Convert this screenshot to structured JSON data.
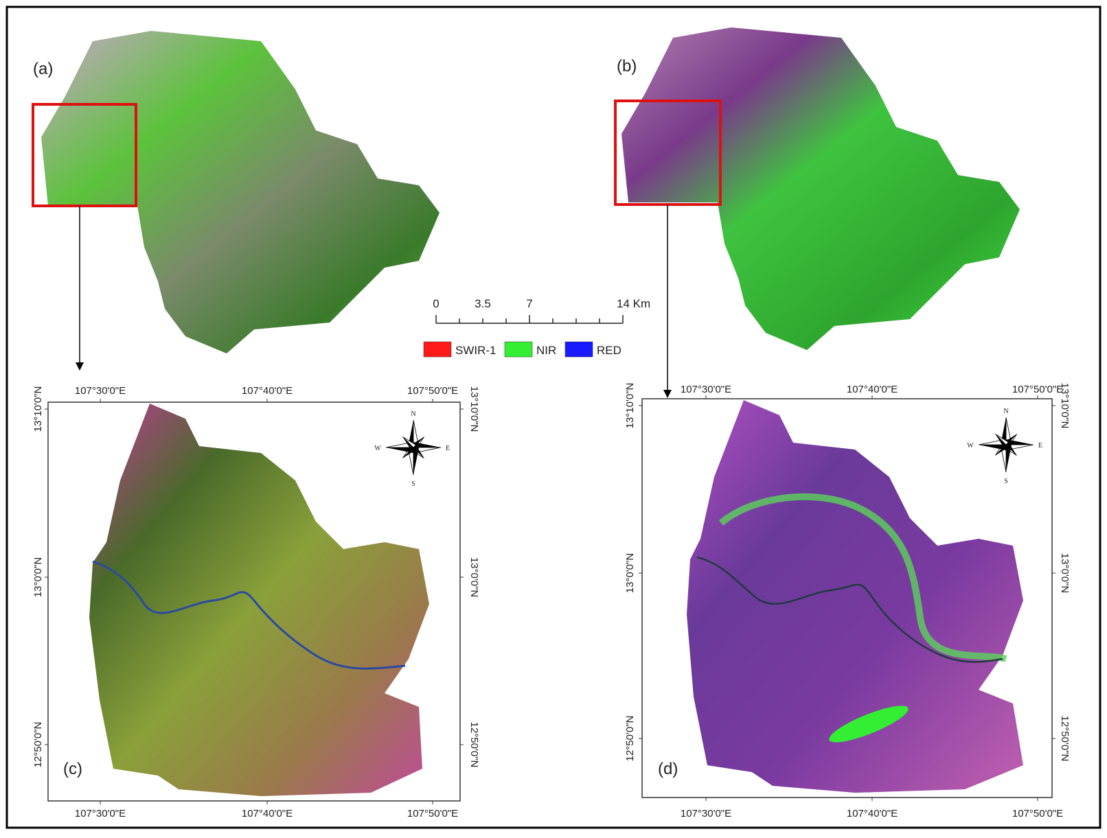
{
  "panel_labels": [
    "(a)",
    "(b)",
    "(c)",
    "(d)"
  ],
  "scale_bar": {
    "labels": [
      "0",
      "3.5",
      "7",
      "14 Km"
    ]
  },
  "legend": [
    {
      "name": "SWIR-1",
      "color": "#ff1a1a"
    },
    {
      "name": "NIR",
      "color": "#33ee33"
    },
    {
      "name": "RED",
      "color": "#1a1aff"
    }
  ],
  "map_c": {
    "x_labels": [
      "107°30'0\"E",
      "107°40'0\"E",
      "107°50'0\"E"
    ],
    "y_labels": [
      "13°10'0\"N",
      "13°0'0\"N",
      "12°50'0\"N"
    ]
  },
  "map_d": {
    "x_labels": [
      "107°30'0\"E",
      "107°40'0\"E",
      "107°50'0\"E"
    ],
    "y_labels": [
      "13°10'0\"N",
      "13°0'0\"N",
      "12°50'0\"N"
    ]
  },
  "compass": [
    "N",
    "E",
    "S",
    "W"
  ]
}
